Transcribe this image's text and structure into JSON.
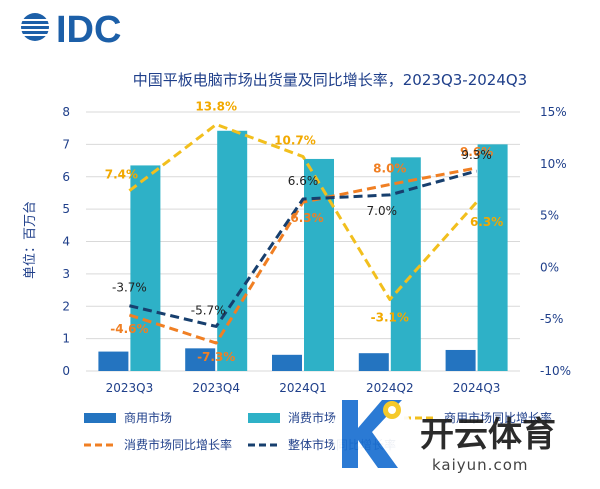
{
  "brand": {
    "logo_text": "IDC",
    "logo_color": "#1c5fa8"
  },
  "chart_data": {
    "type": "bar",
    "title": "中国平板电脑市场出货量及同比增长率，2023Q3-2024Q3",
    "ylabel": "单位：百万台",
    "ylim": [
      0,
      8
    ],
    "y2lim": [
      -10,
      15
    ],
    "yticks": [
      "0",
      "1",
      "2",
      "3",
      "4",
      "5",
      "6",
      "7",
      "8"
    ],
    "y2ticks": [
      "-10%",
      "-5%",
      "0%",
      "5%",
      "10%",
      "15%"
    ],
    "categories": [
      "2023Q3",
      "2023Q4",
      "2024Q1",
      "2024Q2",
      "2024Q3"
    ],
    "bar_series": [
      {
        "name": "商用市场",
        "color": "#2474c0",
        "values": [
          0.6,
          0.7,
          0.5,
          0.55,
          0.65
        ]
      },
      {
        "name": "消费市场",
        "color": "#2eb1c7",
        "values": [
          6.35,
          7.42,
          6.55,
          6.6,
          7.0
        ]
      }
    ],
    "line_series": [
      {
        "name": "商用市场同比增长率",
        "color": "#f2bf1d",
        "values": [
          7.4,
          13.8,
          10.7,
          -3.1,
          6.3
        ],
        "labels": [
          "7.4%",
          "13.8%",
          "10.7%",
          "-3.1%",
          "6.3%"
        ]
      },
      {
        "name": "消费市场同比增长率",
        "color": "#f07f23",
        "values": [
          -4.6,
          -7.3,
          6.3,
          8.0,
          9.6
        ],
        "labels": [
          "-4.6%",
          "-7.3%",
          "6.3%",
          "8.0%",
          "9.6%"
        ]
      },
      {
        "name": "整体市场同比增长率",
        "color": "#173f6e",
        "values": [
          -3.7,
          -5.7,
          6.6,
          7.0,
          9.3
        ],
        "labels": [
          "-3.7%",
          "-5.7%",
          "6.6%",
          "7.0%",
          "9.3%"
        ]
      }
    ],
    "legend_position": "bottom",
    "grid": true
  },
  "watermark": {
    "text": "开云体育",
    "subtext": "kaiyun.com"
  }
}
